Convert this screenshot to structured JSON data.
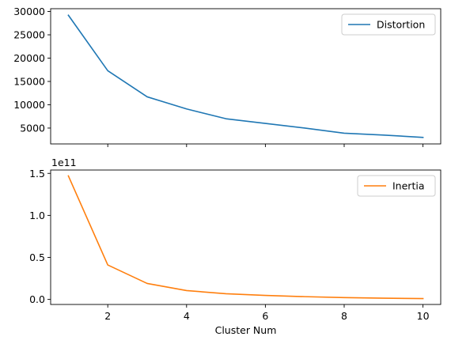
{
  "chart_data": [
    {
      "type": "line",
      "title": "",
      "xlabel": "",
      "ylabel": "",
      "x": [
        1,
        2,
        3,
        4,
        5,
        6,
        7,
        8,
        9,
        10
      ],
      "series": [
        {
          "name": "Distortion",
          "color": "#1f77b4",
          "values": [
            29200,
            17300,
            11700,
            9100,
            7000,
            6000,
            5000,
            3900,
            3500,
            3000
          ]
        }
      ],
      "xlim": [
        0.55,
        10.45
      ],
      "ylim": [
        1600,
        30600
      ],
      "yticks": [
        5000,
        10000,
        15000,
        20000,
        25000,
        30000
      ],
      "ytick_labels": [
        "5000",
        "10000",
        "15000",
        "20000",
        "25000",
        "30000"
      ],
      "xticks": [
        2,
        4,
        6,
        8,
        10
      ],
      "xtick_labels": [],
      "legend": "top-right",
      "grid": false
    },
    {
      "type": "line",
      "title": "",
      "xlabel": "Cluster Num",
      "ylabel": "",
      "y_offset_text": "1e11",
      "x": [
        1,
        2,
        3,
        4,
        5,
        6,
        7,
        8,
        9,
        10
      ],
      "series": [
        {
          "name": "Inertia",
          "color": "#ff7f0e",
          "values": [
            1.47,
            0.41,
            0.19,
            0.105,
            0.068,
            0.048,
            0.033,
            0.022,
            0.015,
            0.01
          ]
        }
      ],
      "xlim": [
        0.55,
        10.45
      ],
      "ylim": [
        -0.06,
        1.54
      ],
      "yticks": [
        0.0,
        0.5,
        1.0,
        1.5
      ],
      "ytick_labels": [
        "0.0",
        "0.5",
        "1.0",
        "1.5"
      ],
      "xticks": [
        2,
        4,
        6,
        8,
        10
      ],
      "xtick_labels": [
        "2",
        "4",
        "6",
        "8",
        "10"
      ],
      "legend": "top-right",
      "grid": false
    }
  ]
}
